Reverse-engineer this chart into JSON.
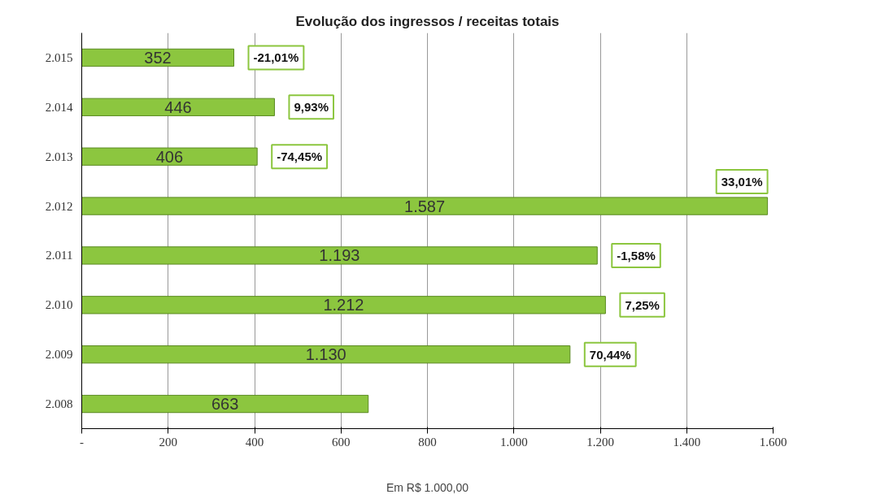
{
  "chart_data": {
    "type": "bar",
    "orientation": "horizontal",
    "title": "Evolução dos ingressos / receitas totais",
    "xlabel": "Em R$ 1.000,00",
    "categories": [
      "2.015",
      "2.014",
      "2.013",
      "2.012",
      "2.011",
      "2.010",
      "2.009",
      "2.008"
    ],
    "values": [
      352,
      446,
      406,
      1587,
      1193,
      1212,
      1130,
      663
    ],
    "value_labels": [
      "352",
      "446",
      "406",
      "1.587",
      "1.193",
      "1.212",
      "1.130",
      "663"
    ],
    "color": "#8cc63f",
    "xlim": [
      0,
      1600
    ],
    "xticks": [
      {
        "value": 0,
        "label": "-"
      },
      200,
      400,
      600,
      800,
      {
        "value": 1000,
        "label": "1.000"
      },
      {
        "value": 1200,
        "label": "1.200"
      },
      {
        "value": 1400,
        "label": "1.400"
      },
      {
        "value": 1600,
        "label": "1.600"
      }
    ],
    "grid": "x",
    "annotations": [
      {
        "text": "-21,01%",
        "x": 352,
        "y": "2.015"
      },
      {
        "text": "9,93%",
        "x": 446,
        "y": "2.014"
      },
      {
        "text": "-74,45%",
        "x": 406,
        "y": "2.013"
      },
      {
        "text": "33,01%",
        "x": 1587,
        "y": "2.012"
      },
      {
        "text": "-1,58%",
        "x": 1193,
        "y": "2.011"
      },
      {
        "text": "7,25%",
        "x": 1212,
        "y": "2.010"
      },
      {
        "text": "70,44%",
        "x": 1130,
        "y": "2.009"
      }
    ]
  }
}
